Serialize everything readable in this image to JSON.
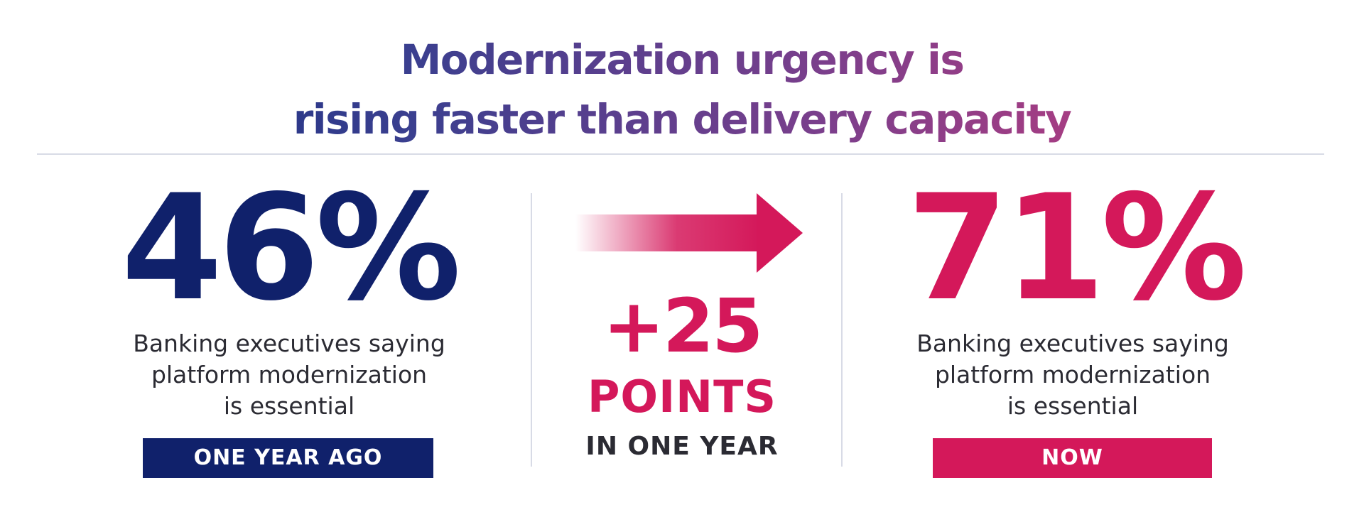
{
  "title": {
    "line1": "Modernization urgency is",
    "line2": "rising faster than delivery capacity"
  },
  "colors": {
    "navy": "#10216b",
    "pink": "#d4185a",
    "text": "#2b2b33",
    "divider": "#d8dbe6"
  },
  "left_stat": {
    "value": "46%",
    "description": [
      "Banking executives saying",
      "platform modernization",
      "is essential"
    ],
    "badge": "ONE YEAR AGO"
  },
  "change": {
    "icon": "arrow-right-icon",
    "value": "+25",
    "unit": "POINTS",
    "period": "IN ONE YEAR"
  },
  "right_stat": {
    "value": "71%",
    "description": [
      "Banking executives saying",
      "platform modernization",
      "is essential"
    ],
    "badge": "NOW"
  }
}
